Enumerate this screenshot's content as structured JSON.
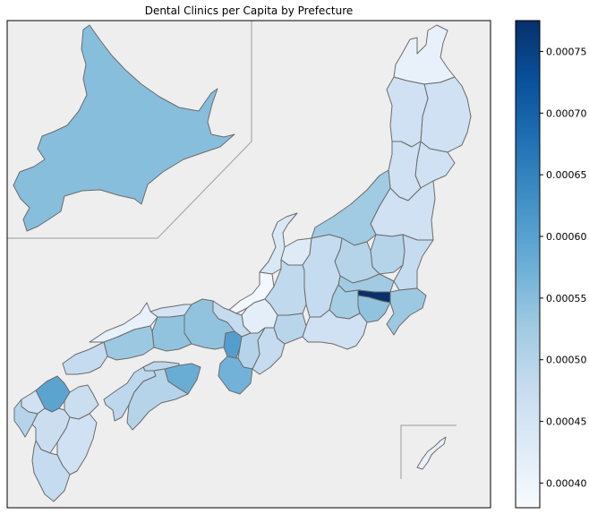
{
  "chart_data": {
    "type": "choropleth",
    "title": "Dental Clinics per Capita by Prefecture",
    "colormap": "Blues",
    "value_range": [
      0.00038,
      0.000775
    ],
    "colorbar_ticks": [
      "0.00040",
      "0.00045",
      "0.00050",
      "0.00055",
      "0.00060",
      "0.00065",
      "0.00070",
      "0.00075"
    ],
    "colors": {
      "map_background": "#eeeeee",
      "border": "#6b6b6b",
      "frame": "#000000",
      "inset_line": "#aaaaaa"
    },
    "regions": [
      {
        "name": "Hokkaido",
        "value": 0.00055
      },
      {
        "name": "Aomori",
        "value": 0.00041
      },
      {
        "name": "Iwate",
        "value": 0.00046
      },
      {
        "name": "Akita",
        "value": 0.00046
      },
      {
        "name": "Miyagi",
        "value": 0.00046
      },
      {
        "name": "Yamagata",
        "value": 0.00046
      },
      {
        "name": "Fukushima",
        "value": 0.00046
      },
      {
        "name": "Niigata",
        "value": 0.000525
      },
      {
        "name": "Ibaraki",
        "value": 0.00048
      },
      {
        "name": "Tochigi",
        "value": 0.0005
      },
      {
        "name": "Gunma",
        "value": 0.0005
      },
      {
        "name": "Saitama",
        "value": 0.000525
      },
      {
        "name": "Chiba",
        "value": 0.00053
      },
      {
        "name": "Tokyo",
        "value": 0.000775
      },
      {
        "name": "Kanagawa",
        "value": 0.00054
      },
      {
        "name": "Toyama",
        "value": 0.00043
      },
      {
        "name": "Ishikawa",
        "value": 0.00044
      },
      {
        "name": "Fukui",
        "value": 0.00039
      },
      {
        "name": "Nagano",
        "value": 0.00048
      },
      {
        "name": "Yamanashi",
        "value": 0.00052
      },
      {
        "name": "Gifu",
        "value": 0.000485
      },
      {
        "name": "Shizuoka",
        "value": 0.00046
      },
      {
        "name": "Aichi",
        "value": 0.000495
      },
      {
        "name": "Mie",
        "value": 0.00048
      },
      {
        "name": "Shiga",
        "value": 0.00042
      },
      {
        "name": "Kyoto",
        "value": 0.00048
      },
      {
        "name": "Osaka",
        "value": 0.000605
      },
      {
        "name": "Hyogo",
        "value": 0.00054
      },
      {
        "name": "Nara",
        "value": 0.0005
      },
      {
        "name": "Wakayama",
        "value": 0.00057
      },
      {
        "name": "Tottori",
        "value": 0.00045
      },
      {
        "name": "Shimane",
        "value": 0.00041
      },
      {
        "name": "Okayama",
        "value": 0.00054
      },
      {
        "name": "Hiroshima",
        "value": 0.00053
      },
      {
        "name": "Yamaguchi",
        "value": 0.00048
      },
      {
        "name": "Tokushima",
        "value": 0.00058
      },
      {
        "name": "Kagawa",
        "value": 0.00049
      },
      {
        "name": "Ehime",
        "value": 0.00049
      },
      {
        "name": "Kochi",
        "value": 0.0005
      },
      {
        "name": "Fukuoka",
        "value": 0.000595
      },
      {
        "name": "Saga",
        "value": 0.00046
      },
      {
        "name": "Nagasaki",
        "value": 0.0005
      },
      {
        "name": "Kumamoto",
        "value": 0.00047
      },
      {
        "name": "Oita",
        "value": 0.00047
      },
      {
        "name": "Miyazaki",
        "value": 0.00046
      },
      {
        "name": "Kagoshima",
        "value": 0.00048
      },
      {
        "name": "Okinawa",
        "value": 0.00041
      }
    ]
  }
}
